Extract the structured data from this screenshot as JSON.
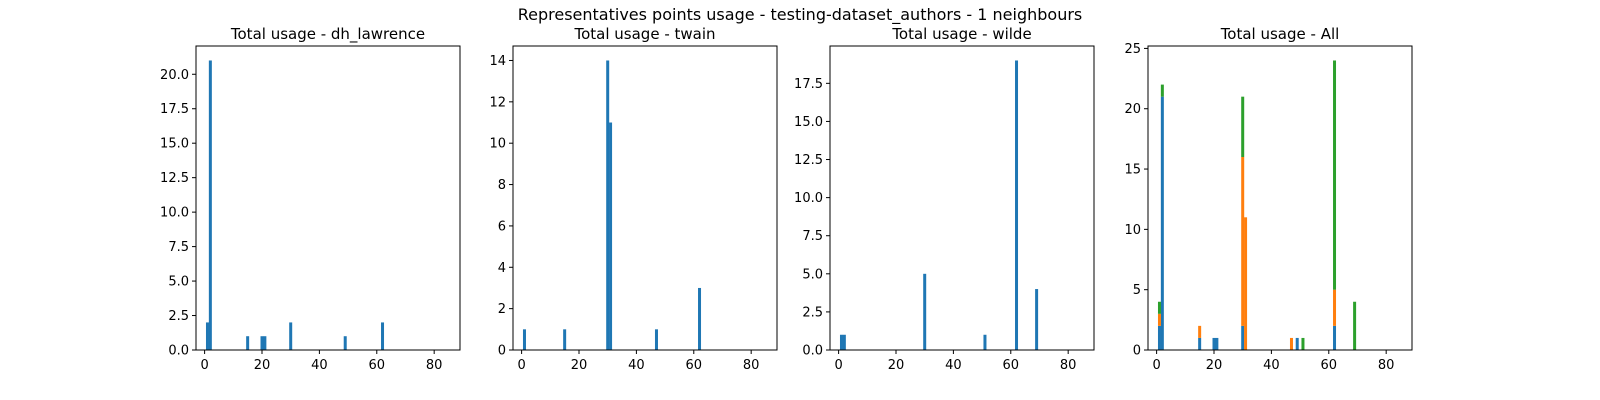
{
  "figure": {
    "suptitle": "Representatives points usage - testing-dataset_authors - 1 neighbours"
  },
  "colors": {
    "blue": "#1f77b4",
    "orange": "#ff7f0e",
    "green": "#2ca02c"
  },
  "chart_data": [
    {
      "type": "bar",
      "title": "Total usage - dh_lawrence",
      "xlim": [
        -3,
        89
      ],
      "ylim": [
        0,
        22.05
      ],
      "xticks": [
        0,
        20,
        40,
        60,
        80
      ],
      "yticks": [
        0.0,
        2.5,
        5.0,
        7.5,
        10.0,
        12.5,
        15.0,
        17.5,
        20.0
      ],
      "ytick_labels": [
        "0.0",
        "2.5",
        "5.0",
        "7.5",
        "10.0",
        "12.5",
        "15.0",
        "17.5",
        "20.0"
      ],
      "grid": false,
      "series": [
        {
          "color": "blue",
          "points": [
            [
              1,
              2
            ],
            [
              2,
              21
            ],
            [
              15,
              1
            ],
            [
              20,
              1
            ],
            [
              21,
              1
            ],
            [
              30,
              2
            ],
            [
              49,
              1
            ],
            [
              62,
              2
            ]
          ]
        }
      ]
    },
    {
      "type": "bar",
      "title": "Total usage - twain",
      "xlim": [
        -3,
        89
      ],
      "ylim": [
        0,
        14.7
      ],
      "xticks": [
        0,
        20,
        40,
        60,
        80
      ],
      "yticks": [
        0,
        2,
        4,
        6,
        8,
        10,
        12,
        14
      ],
      "ytick_labels": [
        "0",
        "2",
        "4",
        "6",
        "8",
        "10",
        "12",
        "14"
      ],
      "grid": false,
      "series": [
        {
          "color": "blue",
          "points": [
            [
              1,
              1
            ],
            [
              15,
              1
            ],
            [
              30,
              14
            ],
            [
              31,
              11
            ],
            [
              47,
              1
            ],
            [
              62,
              3
            ]
          ]
        }
      ]
    },
    {
      "type": "bar",
      "title": "Total usage - wilde",
      "xlim": [
        -3,
        89
      ],
      "ylim": [
        0,
        19.95
      ],
      "xticks": [
        0,
        20,
        40,
        60,
        80
      ],
      "yticks": [
        0.0,
        2.5,
        5.0,
        7.5,
        10.0,
        12.5,
        15.0,
        17.5
      ],
      "ytick_labels": [
        "0.0",
        "2.5",
        "5.0",
        "7.5",
        "10.0",
        "12.5",
        "15.0",
        "17.5"
      ],
      "grid": false,
      "series": [
        {
          "color": "blue",
          "points": [
            [
              1,
              1
            ],
            [
              2,
              1
            ],
            [
              30,
              5
            ],
            [
              51,
              1
            ],
            [
              62,
              19
            ],
            [
              69,
              4
            ]
          ]
        }
      ]
    },
    {
      "type": "bar",
      "title": "Total usage - All",
      "xlim": [
        -3,
        89
      ],
      "ylim": [
        0,
        25.2
      ],
      "xticks": [
        0,
        20,
        40,
        60,
        80
      ],
      "yticks": [
        0,
        5,
        10,
        15,
        20,
        25
      ],
      "ytick_labels": [
        "0",
        "5",
        "10",
        "15",
        "20",
        "25"
      ],
      "grid": false,
      "stacked": true,
      "series": [
        {
          "color": "blue",
          "points": [
            [
              1,
              2
            ],
            [
              2,
              21
            ],
            [
              15,
              1
            ],
            [
              20,
              1
            ],
            [
              21,
              1
            ],
            [
              30,
              2
            ],
            [
              49,
              1
            ],
            [
              62,
              2
            ]
          ]
        },
        {
          "color": "orange",
          "points": [
            [
              1,
              1
            ],
            [
              15,
              1
            ],
            [
              30,
              14
            ],
            [
              31,
              11
            ],
            [
              47,
              1
            ],
            [
              62,
              3
            ]
          ]
        },
        {
          "color": "green",
          "points": [
            [
              1,
              1
            ],
            [
              2,
              1
            ],
            [
              30,
              5
            ],
            [
              51,
              1
            ],
            [
              62,
              19
            ],
            [
              69,
              4
            ]
          ]
        }
      ]
    }
  ]
}
